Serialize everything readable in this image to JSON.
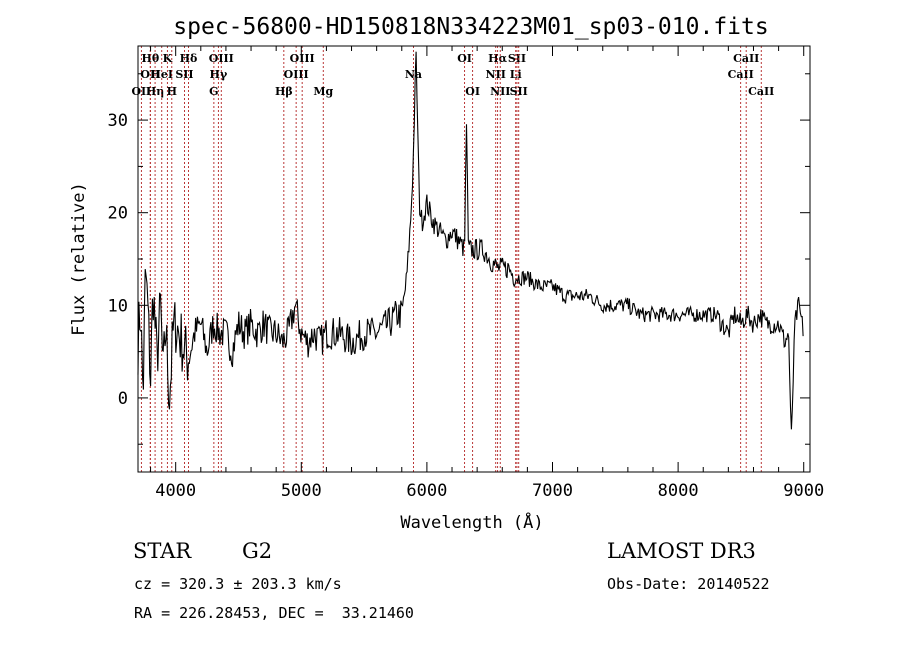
{
  "chart_data": {
    "type": "line",
    "title": "spec-56800-HD150818N334223M01_sp03-010.fits",
    "xlabel": "Wavelength (Å)",
    "ylabel": "Flux (relative)",
    "xlim": [
      3700,
      9050
    ],
    "ylim": [
      -8,
      38
    ],
    "xticks": [
      4000,
      5000,
      6000,
      7000,
      8000,
      9000
    ],
    "yticks": [
      0,
      10,
      20,
      30
    ],
    "line_color": "#000000",
    "marker_line_color": "#b22222",
    "grid": false,
    "series_anchor_points": [
      [
        3700,
        6
      ],
      [
        3720,
        10
      ],
      [
        3740,
        0
      ],
      [
        3760,
        14
      ],
      [
        3780,
        9
      ],
      [
        3800,
        2
      ],
      [
        3820,
        12
      ],
      [
        3850,
        4
      ],
      [
        3880,
        10
      ],
      [
        3900,
        2
      ],
      [
        3920,
        8
      ],
      [
        3950,
        0
      ],
      [
        3980,
        7
      ],
      [
        4000,
        8
      ],
      [
        4050,
        6
      ],
      [
        4100,
        4
      ],
      [
        4150,
        7
      ],
      [
        4200,
        8
      ],
      [
        4250,
        5
      ],
      [
        4300,
        8
      ],
      [
        4350,
        7
      ],
      [
        4400,
        7
      ],
      [
        4450,
        5
      ],
      [
        4500,
        8
      ],
      [
        4550,
        7
      ],
      [
        4600,
        8
      ],
      [
        4650,
        7
      ],
      [
        4700,
        8
      ],
      [
        4750,
        7
      ],
      [
        4800,
        7
      ],
      [
        4850,
        6
      ],
      [
        4900,
        7
      ],
      [
        4950,
        10
      ],
      [
        5000,
        7
      ],
      [
        5050,
        6
      ],
      [
        5100,
        7
      ],
      [
        5150,
        6
      ],
      [
        5200,
        7
      ],
      [
        5300,
        7
      ],
      [
        5400,
        6
      ],
      [
        5500,
        7
      ],
      [
        5600,
        7
      ],
      [
        5700,
        8
      ],
      [
        5760,
        9
      ],
      [
        5800,
        9
      ],
      [
        5840,
        13
      ],
      [
        5870,
        19
      ],
      [
        5890,
        25
      ],
      [
        5905,
        33
      ],
      [
        5915,
        37
      ],
      [
        5925,
        30
      ],
      [
        5940,
        21
      ],
      [
        5960,
        19
      ],
      [
        6000,
        21
      ],
      [
        6050,
        19
      ],
      [
        6100,
        18
      ],
      [
        6150,
        17
      ],
      [
        6200,
        18
      ],
      [
        6250,
        17
      ],
      [
        6300,
        16
      ],
      [
        6315,
        30
      ],
      [
        6330,
        16
      ],
      [
        6400,
        16
      ],
      [
        6450,
        16
      ],
      [
        6500,
        15
      ],
      [
        6560,
        14
      ],
      [
        6600,
        14
      ],
      [
        6650,
        14
      ],
      [
        6700,
        13
      ],
      [
        6750,
        13
      ],
      [
        6800,
        13
      ],
      [
        6900,
        12
      ],
      [
        7000,
        12
      ],
      [
        7100,
        11
      ],
      [
        7200,
        11
      ],
      [
        7300,
        11
      ],
      [
        7400,
        10
      ],
      [
        7500,
        10
      ],
      [
        7600,
        10
      ],
      [
        7700,
        9
      ],
      [
        7800,
        9
      ],
      [
        7900,
        9
      ],
      [
        8000,
        9
      ],
      [
        8100,
        9
      ],
      [
        8200,
        9
      ],
      [
        8300,
        9
      ],
      [
        8350,
        8
      ],
      [
        8400,
        7
      ],
      [
        8450,
        9
      ],
      [
        8500,
        8
      ],
      [
        8550,
        9
      ],
      [
        8600,
        8
      ],
      [
        8650,
        9
      ],
      [
        8700,
        8
      ],
      [
        8750,
        8
      ],
      [
        8800,
        8
      ],
      [
        8850,
        6
      ],
      [
        8880,
        7
      ],
      [
        8900,
        -5
      ],
      [
        8930,
        8
      ],
      [
        8960,
        10
      ],
      [
        9000,
        7
      ]
    ],
    "line_markers": [
      {
        "name": "OII",
        "wl": 3727,
        "row": 3
      },
      {
        "name": "Hθ",
        "wl": 3798,
        "row": 1
      },
      {
        "name": "OII",
        "wl": 3798,
        "row": 2
      },
      {
        "name": "Hη",
        "wl": 3836,
        "row": 3
      },
      {
        "name": "HeI",
        "wl": 3889,
        "row": 2
      },
      {
        "name": "K",
        "wl": 3934,
        "row": 1
      },
      {
        "name": "H",
        "wl": 3969,
        "row": 3
      },
      {
        "name": "SII",
        "wl": 4070,
        "row": 2
      },
      {
        "name": "Hδ",
        "wl": 4102,
        "row": 1
      },
      {
        "name": "OIII",
        "wl": 4363,
        "row": 1
      },
      {
        "name": "Hγ",
        "wl": 4340,
        "row": 2
      },
      {
        "name": "G",
        "wl": 4304,
        "row": 3
      },
      {
        "name": "Hβ",
        "wl": 4861,
        "row": 3
      },
      {
        "name": "OIII",
        "wl": 4959,
        "row": 2
      },
      {
        "name": "OIII",
        "wl": 5007,
        "row": 1
      },
      {
        "name": "Mg",
        "wl": 5175,
        "row": 3
      },
      {
        "name": "Na",
        "wl": 5893,
        "row": 2
      },
      {
        "name": "OI",
        "wl": 6300,
        "row": 1
      },
      {
        "name": "OI",
        "wl": 6364,
        "row": 3
      },
      {
        "name": "Hα",
        "wl": 6563,
        "row": 1
      },
      {
        "name": "NII",
        "wl": 6548,
        "row": 2
      },
      {
        "name": "NII",
        "wl": 6584,
        "row": 3
      },
      {
        "name": "SII",
        "wl": 6717,
        "row": 1
      },
      {
        "name": "Li",
        "wl": 6707,
        "row": 2
      },
      {
        "name": "SII",
        "wl": 6731,
        "row": 3
      },
      {
        "name": "CaII",
        "wl": 8498,
        "row": 2
      },
      {
        "name": "CaII",
        "wl": 8542,
        "row": 1
      },
      {
        "name": "CaII",
        "wl": 8662,
        "row": 3
      }
    ]
  },
  "info": {
    "object_class": "STAR",
    "subclass": "G2",
    "survey": "LAMOST DR3",
    "redshift_line": "cz = 320.3 ± 203.3 km/s",
    "obs_date_line": "Obs-Date: 20140522",
    "coords_line": "RA = 226.28453, DEC =  33.21460"
  }
}
